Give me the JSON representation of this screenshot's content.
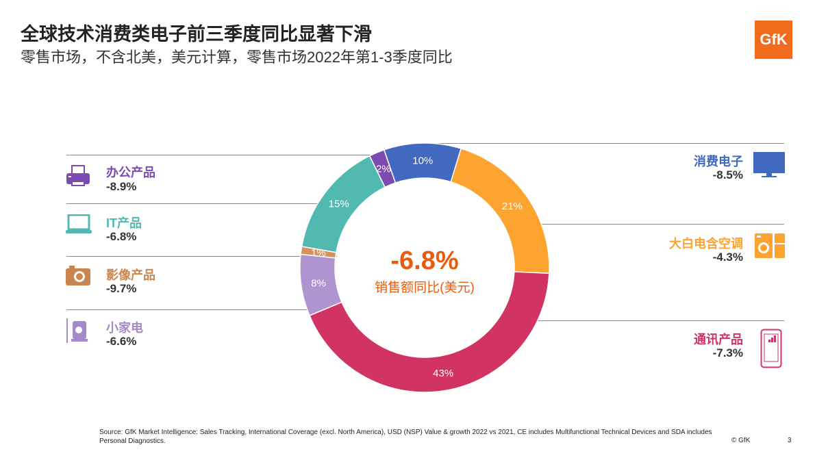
{
  "header": {
    "title": "全球技术消费类电子前三季度同比显著下滑",
    "subtitle": "零售市场，不含北美，美元计算，零售市场2022年第1-3季度同比",
    "logo": "GfK"
  },
  "chart_data": {
    "type": "pie",
    "donut": true,
    "center_value": "-6.8%",
    "center_label": "销售额同比(美元)",
    "slices": [
      {
        "name": "消费电子",
        "share": 10,
        "label": "10%",
        "growth": "-8.5%",
        "color": "#4169c0",
        "icon": "tv-icon"
      },
      {
        "name": "大白电含空调",
        "share": 21,
        "label": "21%",
        "growth": "-4.3%",
        "color": "#fca330",
        "icon": "washing-machine-icon"
      },
      {
        "name": "通讯产品",
        "share": 43,
        "label": "43%",
        "growth": "-7.3%",
        "color": "#d13462",
        "icon": "smartphone-icon"
      },
      {
        "name": "小家电",
        "share": 8,
        "label": "8%",
        "growth": "-6.6%",
        "color": "#b094d0",
        "icon": "small-appliance-icon"
      },
      {
        "name": "影像产品",
        "share": 1,
        "label": "1%",
        "growth": "-9.7%",
        "color": "#d4915a",
        "icon": "camera-icon"
      },
      {
        "name": "IT产品",
        "share": 15,
        "label": "15%",
        "growth": "-6.8%",
        "color": "#52b9b0",
        "icon": "laptop-icon"
      },
      {
        "name": "办公产品",
        "share": 2,
        "label": "2%",
        "growth": "-8.9%",
        "color": "#7b4baf",
        "icon": "printer-icon"
      }
    ]
  },
  "footer": {
    "source": "Source: GfK Market Intelligence: Sales Tracking, International Coverage (excl. North America), USD (NSP) Value & growth 2022 vs 2021, CE includes Multifunctional Technical Devices and SDA includes Personal Diagnostics.",
    "copyright": "© GfK",
    "page": "3"
  }
}
